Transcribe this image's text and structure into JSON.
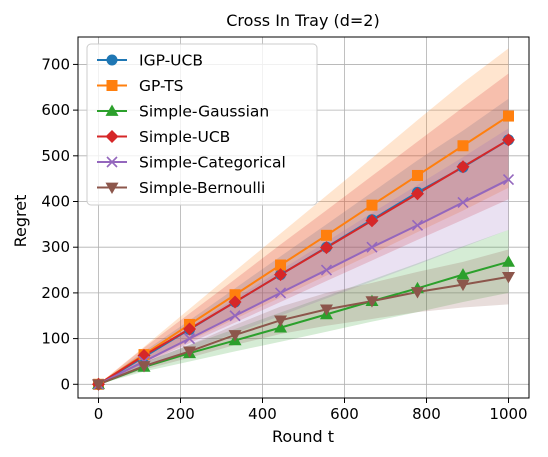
{
  "chart_data": {
    "type": "line",
    "title": "Cross In Tray (d=2)",
    "xlabel": "Round t",
    "ylabel": "Regret",
    "xlim": [
      -50,
      1050
    ],
    "ylim": [
      -30,
      760
    ],
    "xticks": [
      0,
      200,
      400,
      600,
      800,
      1000
    ],
    "yticks": [
      0,
      100,
      200,
      300,
      400,
      500,
      600,
      700
    ],
    "grid": true,
    "legend_position": "upper-left",
    "x": [
      0,
      111,
      222,
      333,
      444,
      556,
      667,
      778,
      889,
      1000
    ],
    "series": [
      {
        "name": "IGP-UCB",
        "color": "#1f77b4",
        "marker": "circle",
        "values": [
          0,
          60,
          120,
          180,
          240,
          300,
          360,
          420,
          475,
          535
        ],
        "lower": [
          0,
          48,
          100,
          150,
          200,
          250,
          300,
          350,
          395,
          445
        ],
        "upper": [
          0,
          72,
          140,
          210,
          280,
          350,
          420,
          490,
          555,
          625
        ]
      },
      {
        "name": "GP-TS",
        "color": "#ff7f0e",
        "marker": "square",
        "values": [
          0,
          65,
          131,
          196,
          261,
          326,
          392,
          457,
          522,
          587
        ],
        "lower": [
          0,
          48,
          95,
          143,
          190,
          238,
          285,
          333,
          380,
          430
        ],
        "upper": [
          0,
          82,
          165,
          248,
          330,
          413,
          495,
          578,
          660,
          735
        ]
      },
      {
        "name": "Simple-Gaussian",
        "color": "#2ca02c",
        "marker": "triangle-up",
        "values": [
          0,
          38,
          68,
          96,
          124,
          153,
          182,
          210,
          240,
          268
        ],
        "lower": [
          0,
          28,
          50,
          72,
          93,
          115,
          137,
          158,
          180,
          200
        ],
        "upper": [
          0,
          48,
          86,
          121,
          157,
          193,
          229,
          265,
          302,
          338
        ]
      },
      {
        "name": "Simple-UCB",
        "color": "#d62728",
        "marker": "diamond",
        "values": [
          0,
          63,
          121,
          180,
          240,
          299,
          358,
          417,
          476,
          535
        ],
        "lower": [
          0,
          45,
          90,
          135,
          180,
          226,
          271,
          316,
          360,
          405
        ],
        "upper": [
          0,
          80,
          155,
          230,
          306,
          381,
          456,
          531,
          606,
          680
        ]
      },
      {
        "name": "Simple-Categorical",
        "color": "#9467bd",
        "marker": "x",
        "values": [
          0,
          50,
          100,
          150,
          200,
          250,
          300,
          348,
          398,
          448
        ],
        "lower": [
          0,
          38,
          75,
          112,
          150,
          188,
          225,
          262,
          300,
          338
        ],
        "upper": [
          0,
          62,
          125,
          188,
          250,
          312,
          375,
          436,
          497,
          560
        ]
      },
      {
        "name": "Simple-Bernoulli",
        "color": "#8c564b",
        "marker": "triangle-down",
        "values": [
          0,
          40,
          72,
          108,
          140,
          164,
          182,
          202,
          218,
          235
        ],
        "lower": [
          0,
          32,
          58,
          86,
          110,
          128,
          143,
          158,
          168,
          175
        ],
        "upper": [
          0,
          48,
          86,
          130,
          170,
          200,
          222,
          246,
          268,
          295
        ]
      }
    ]
  }
}
